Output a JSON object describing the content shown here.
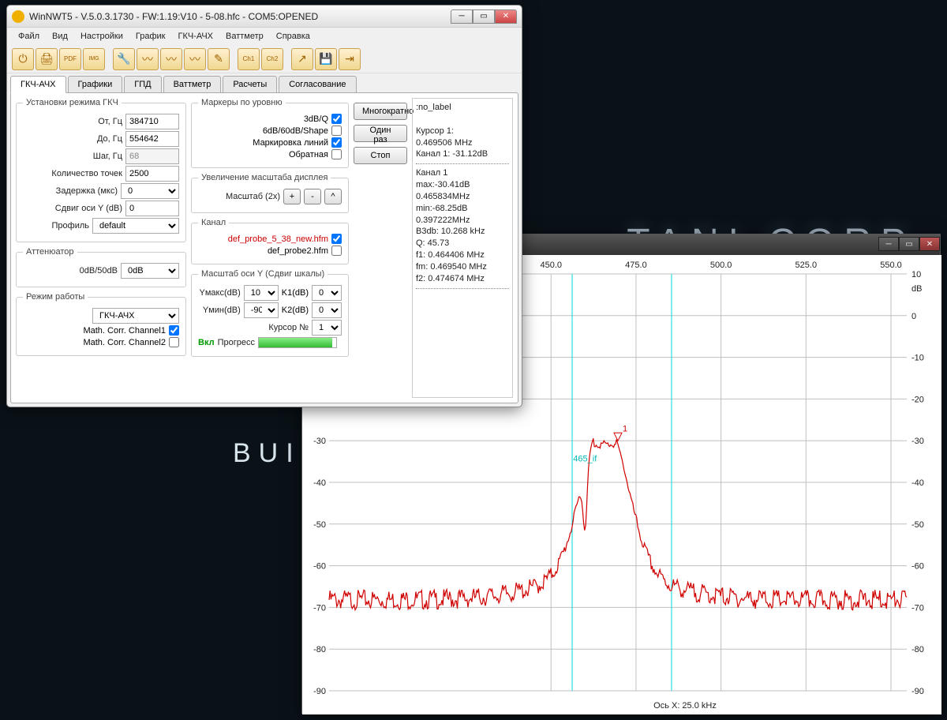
{
  "bg": {
    "line1": "TANI CORP",
    "line2": "BUI"
  },
  "window": {
    "title": "WinNWT5 - V.5.0.3.1730 - FW:1.19:V10 - 5-08.hfc - COM5:OPENED",
    "menu": [
      "Файл",
      "Вид",
      "Настройки",
      "График",
      "ГКЧ-АЧХ",
      "Ваттметр",
      "Справка"
    ],
    "toolbar_icons": [
      "power",
      "print",
      "pdf",
      "image",
      "probe",
      "h1",
      "h2",
      "h3",
      "tool",
      "ch1",
      "ch2",
      "arrow",
      "save",
      "export"
    ],
    "tabs": [
      "ГКЧ-АЧХ",
      "Графики",
      "ГПД",
      "Ваттметр",
      "Расчеты",
      "Согласование"
    ],
    "active_tab": 0
  },
  "settings": {
    "group_title": "Установки режима ГКЧ",
    "from_label": "От, Гц",
    "from": "384710",
    "to_label": "До, Гц",
    "to": "554642",
    "step_label": "Шаг, Гц",
    "step": "68",
    "points_label": "Количество точек",
    "points": "2500",
    "delay_label": "Задержка (мкс)",
    "delay": "0",
    "yshift_label": "Сдвиг оси Y (dB)",
    "yshift": "0",
    "profile_label": "Профиль",
    "profile": "default"
  },
  "atten": {
    "group_title": "Аттенюатор",
    "label": "0dB/50dB",
    "value": "0dB"
  },
  "mode": {
    "group_title": "Режим работы",
    "value": "ГКЧ-АЧХ",
    "math1_label": "Math. Corr. Channel1",
    "math1": true,
    "math2_label": "Math. Corr. Channel2",
    "math2": false
  },
  "markers": {
    "group_title": "Маркеры по уровню",
    "m3db_label": "3dB/Q",
    "m3db": true,
    "m6db_label": "6dB/60dB/Shape",
    "m6db": false,
    "lines_label": "Маркировка линий",
    "lines": true,
    "inv_label": "Обратная",
    "inv": false
  },
  "zoom": {
    "group_title": "Увеличение масштаба дисплея",
    "scale_label": "Масштаб (2x)",
    "plus": "+",
    "minus": "-",
    "up": "^"
  },
  "channel": {
    "group_title": "Канал",
    "probe1": "def_probe_5_38_new.hfm",
    "probe1_chk": true,
    "probe2": "def_probe2.hfm",
    "probe2_chk": false
  },
  "yaxis": {
    "group_title": "Масштаб оси Y (Сдвиг шкалы)",
    "ymax_label": "Yмакс(dB)",
    "ymax": "10",
    "k1_label": "K1(dB)",
    "k1": "0",
    "ymin_label": "Yмин(dB)",
    "ymin": "-90",
    "k2_label": "K2(dB)",
    "k2": "0",
    "cursor_label": "Курсор №",
    "cursor": "1",
    "on_label": "Вкл",
    "progress_label": "Прогресс"
  },
  "run_buttons": {
    "multi": "Многократно",
    "once": "Один раз",
    "stop": "Стоп"
  },
  "info": {
    "no_label": ":no_label",
    "cursor_title": "Курсор 1:",
    "cursor_freq": "0.469506 MHz",
    "ch_line": "Канал 1:   -31.12dB",
    "ch_title": "Канал 1",
    "max": "max:-30.41dB 0.465834MHz",
    "min": "min:-68.25dB 0.397222MHz",
    "b3db": "B3db: 10.268 kHz",
    "q": "Q: 45.73",
    "f1": "f1: 0.464406 MHz",
    "fm": "fm: 0.469540 MHz",
    "f2": "f2: 0.474674 MHz"
  },
  "graph": {
    "x_label": "Ось X: 25.0 kHz",
    "y_unit": "dB",
    "marker_label": "465_if",
    "marker_num": "1",
    "x_ticks": [
      450.0,
      475.0,
      500.0,
      525.0,
      550.0
    ],
    "x_tick_labels": [
      "450.0",
      "475.0",
      "500.0",
      "525.0",
      "550.0"
    ],
    "y_ticks": [
      10,
      0,
      -10,
      -20,
      -30,
      -40,
      -50,
      -60,
      -70,
      -80,
      -90
    ],
    "xlim": [
      384.71,
      554.642
    ],
    "ylim": [
      -90,
      10
    ],
    "colors": {
      "trace": "#d00000",
      "grid": "#bfbfbf",
      "axis_text": "#222222",
      "marker_line": "#00d8d8",
      "marker_text": "#00b8b8",
      "background": "#ffffff"
    },
    "marker_x_positions": [
      342,
      468
    ],
    "cursor_x": 400,
    "baseline_db": -67,
    "noise_amp_db": 1.2,
    "peak_freq": 465.8,
    "peak_db": -30.4,
    "peak_width": 11,
    "notch_freq": 460,
    "notch_db": -45
  }
}
